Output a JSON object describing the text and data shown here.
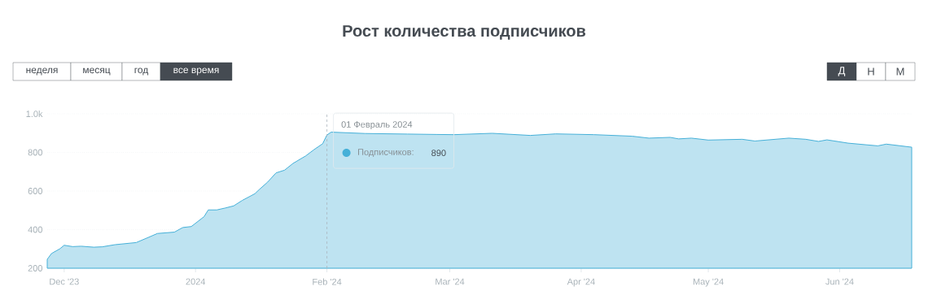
{
  "chart_data": {
    "type": "area",
    "title": "Рост количества подписчиков",
    "x": [
      "2023-11-27",
      "2023-11-28",
      "2023-11-30",
      "2023-12-01",
      "2023-12-03",
      "2023-12-05",
      "2023-12-08",
      "2023-12-10",
      "2023-12-13",
      "2023-12-18",
      "2023-12-21",
      "2023-12-23",
      "2023-12-27",
      "2023-12-29",
      "2023-12-31",
      "2024-01-03",
      "2024-01-04",
      "2024-01-06",
      "2024-01-08",
      "2024-01-10",
      "2024-01-12",
      "2024-01-15",
      "2024-01-16",
      "2024-01-18",
      "2024-01-20",
      "2024-01-22",
      "2024-01-24",
      "2024-01-27",
      "2024-01-29",
      "2024-01-31",
      "2024-02-01",
      "2024-02-02",
      "2024-02-10",
      "2024-02-20",
      "2024-02-27",
      "2024-03-02",
      "2024-03-11",
      "2024-03-20",
      "2024-03-26",
      "2024-04-04",
      "2024-04-13",
      "2024-04-17",
      "2024-04-22",
      "2024-04-24",
      "2024-04-27",
      "2024-05-01",
      "2024-05-09",
      "2024-05-12",
      "2024-05-20",
      "2024-05-24",
      "2024-05-27",
      "2024-05-29",
      "2024-06-03",
      "2024-06-10",
      "2024-06-12",
      "2024-06-18"
    ],
    "series": [
      {
        "name": "Подписчиков:",
        "color": "#45b0d8",
        "values": [
          246,
          276,
          301,
          319,
          312,
          314,
          309,
          311,
          322,
          333,
          361,
          380,
          387,
          411,
          416,
          467,
          502,
          502,
          512,
          523,
          551,
          586,
          607,
          646,
          694,
          708,
          743,
          782,
          815,
          845,
          890,
          905,
          898,
          895,
          893,
          892,
          899,
          888,
          896,
          892,
          884,
          874,
          878,
          870,
          874,
          864,
          868,
          859,
          874,
          868,
          857,
          865,
          848,
          834,
          843,
          827
        ]
      }
    ],
    "xlim": [
      "2023-11-27",
      "2024-06-18"
    ],
    "xticks": [
      {
        "value": "2023-12-01",
        "label": "Dec '23"
      },
      {
        "value": "2024-01-01",
        "label": "2024"
      },
      {
        "value": "2024-02-01",
        "label": "Feb '24"
      },
      {
        "value": "2024-03-01",
        "label": "Mar '24"
      },
      {
        "value": "2024-04-01",
        "label": "Apr '24"
      },
      {
        "value": "2024-05-01",
        "label": "May '24"
      },
      {
        "value": "2024-06-01",
        "label": "Jun '24"
      }
    ],
    "ylim": [
      200,
      1000
    ],
    "yticks": [
      200,
      400,
      600,
      800,
      {
        "value": 1000,
        "label": "1.0k"
      }
    ],
    "grid": "y",
    "legend": "top",
    "marker": "none",
    "line_style": "solid",
    "ref_lines": [
      {
        "axis": "x",
        "value": "2024-02-01",
        "label": null,
        "color": "#aab4bc",
        "line_style": "dashed"
      }
    ],
    "annotations": [
      {
        "text": "01 Февраль 2024",
        "x": "2024-02-01",
        "y": 890
      },
      "неделя",
      "месяц",
      "год",
      "все время",
      "Д",
      "Н",
      "М",
      "890"
    ]
  }
}
